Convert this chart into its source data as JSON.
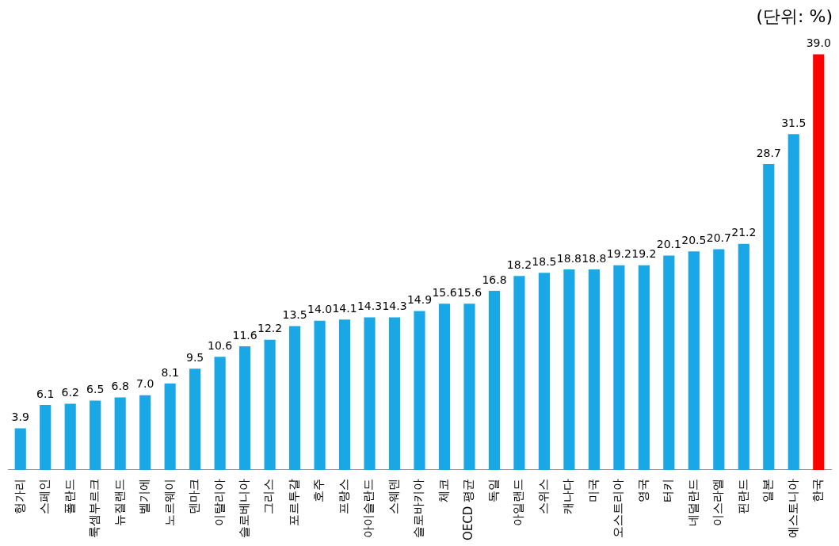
{
  "chart_data": {
    "type": "bar",
    "grid": false,
    "legend": false,
    "value_labels": [
      "3.9",
      "6.1",
      "6.2",
      "6.5",
      "6.8",
      "7.0",
      "8.1",
      "9.5",
      "10.6",
      "11.6",
      "12.2",
      "13.5",
      "14.0",
      "14.1",
      "14.3",
      "14.3",
      "14.9",
      "15.6",
      "15.6",
      "16.8",
      "18.2",
      "18.5",
      "18.8",
      "18.8",
      "19.2",
      "19.2",
      "20.1",
      "20.5",
      "20.7",
      "21.2",
      "28.7",
      "31.5",
      "39.0"
    ],
    "annotations": [
      "(단위: %)"
    ],
    "categories": [
      "헝가리",
      "스페인",
      "폴란드",
      "룩셈부르크",
      "뉴질랜드",
      "벨기에",
      "노르웨이",
      "덴마크",
      "이탈리아",
      "슬로베니아",
      "그리스",
      "포르투갈",
      "호주",
      "프랑스",
      "아이슬란드",
      "스웨덴",
      "슬로바키아",
      "체코",
      "OECD 평균",
      "독일",
      "아일랜드",
      "스위스",
      "캐나다",
      "미국",
      "오스트리아",
      "영국",
      "터키",
      "네덜란드",
      "이스라엘",
      "핀란드",
      "일본",
      "에스토니아",
      "한국"
    ],
    "values": [
      3.9,
      6.1,
      6.2,
      6.5,
      6.8,
      7.0,
      8.1,
      9.5,
      10.6,
      11.6,
      12.2,
      13.5,
      14.0,
      14.1,
      14.3,
      14.3,
      14.9,
      15.6,
      15.6,
      16.8,
      18.2,
      18.5,
      18.8,
      18.8,
      19.2,
      19.2,
      20.1,
      20.5,
      20.7,
      21.2,
      28.7,
      31.5,
      39.0
    ],
    "colors": [
      "#1aa7e6",
      "#1aa7e6",
      "#1aa7e6",
      "#1aa7e6",
      "#1aa7e6",
      "#1aa7e6",
      "#1aa7e6",
      "#1aa7e6",
      "#1aa7e6",
      "#1aa7e6",
      "#1aa7e6",
      "#1aa7e6",
      "#1aa7e6",
      "#1aa7e6",
      "#1aa7e6",
      "#1aa7e6",
      "#1aa7e6",
      "#1aa7e6",
      "#1aa7e6",
      "#1aa7e6",
      "#1aa7e6",
      "#1aa7e6",
      "#1aa7e6",
      "#1aa7e6",
      "#1aa7e6",
      "#1aa7e6",
      "#1aa7e6",
      "#1aa7e6",
      "#1aa7e6",
      "#1aa7e6",
      "#1aa7e6",
      "#1aa7e6",
      "#ff0000"
    ]
  }
}
